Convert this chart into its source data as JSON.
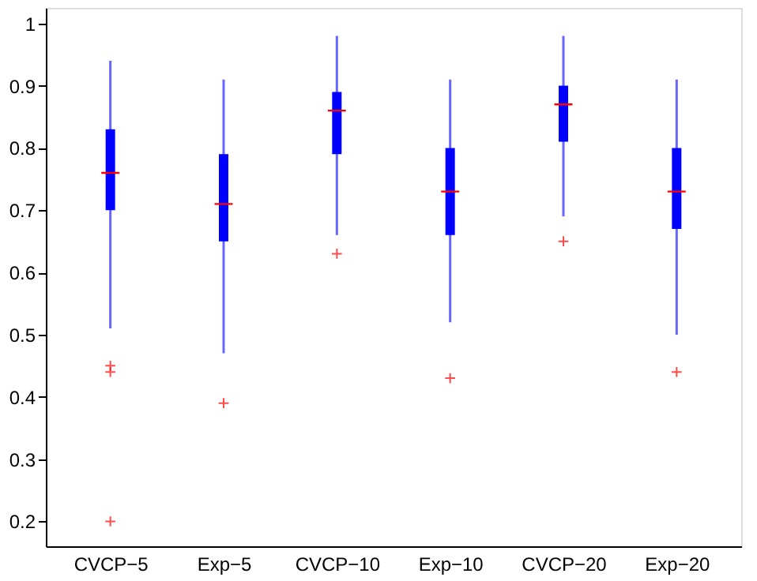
{
  "chart_data": {
    "type": "box",
    "categories": [
      "CVCP−5",
      "Exp−5",
      "CVCP−10",
      "Exp−10",
      "CVCP−20",
      "Exp−20"
    ],
    "series": [
      {
        "color": "#0000ff",
        "boxes": [
          {
            "low": 0.51,
            "q1": 0.7,
            "median": 0.76,
            "q3": 0.83,
            "high": 0.94,
            "outliers": [
              0.45,
              0.44,
              0.2
            ]
          },
          {
            "low": 0.47,
            "q1": 0.65,
            "median": 0.71,
            "q3": 0.79,
            "high": 0.91,
            "outliers": [
              0.39
            ]
          },
          {
            "low": 0.66,
            "q1": 0.79,
            "median": 0.86,
            "q3": 0.89,
            "high": 0.98,
            "outliers": [
              0.63
            ]
          },
          {
            "low": 0.52,
            "q1": 0.66,
            "median": 0.73,
            "q3": 0.8,
            "high": 0.91,
            "outliers": [
              0.43
            ]
          },
          {
            "low": 0.69,
            "q1": 0.81,
            "median": 0.87,
            "q3": 0.9,
            "high": 0.98,
            "outliers": [
              0.65
            ]
          },
          {
            "low": 0.5,
            "q1": 0.67,
            "median": 0.73,
            "q3": 0.8,
            "high": 0.91,
            "outliers": [
              0.44
            ]
          }
        ]
      }
    ],
    "ylim": [
      0.16,
      1.025
    ],
    "yticks": [
      0.2,
      0.3,
      0.4,
      0.5,
      0.6,
      0.7,
      0.8,
      0.9,
      {
        "value": 1,
        "label": "1"
      }
    ],
    "grid": false,
    "legend": false
  }
}
